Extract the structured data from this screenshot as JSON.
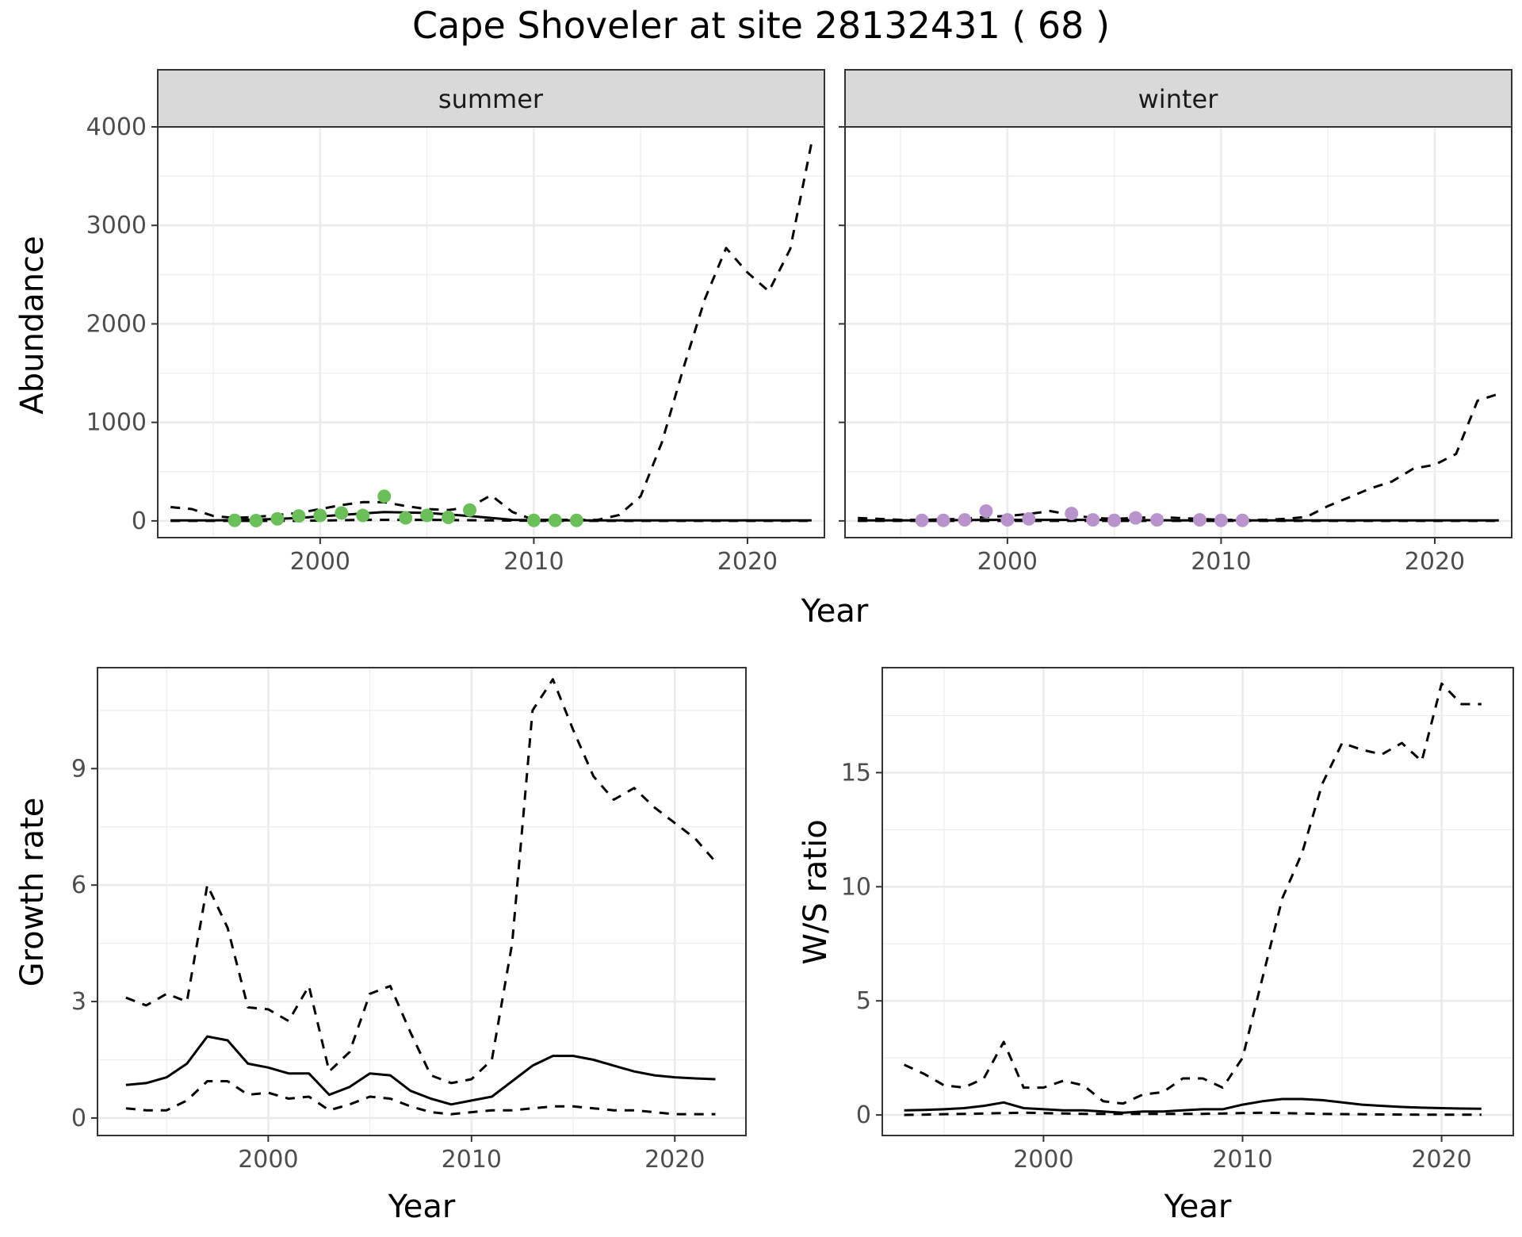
{
  "figure": {
    "title": "Cape Shoveler at site 28132431 ( 68 )",
    "abundance_xlabel": "Year"
  },
  "colors": {
    "summer_points": "#6abf59",
    "winter_points": "#b893cc",
    "strip_fill": "#d9d9d9",
    "strip_border": "#333333",
    "panel_border": "#333333",
    "grid_major": "#ebebeb",
    "line": "#000000"
  },
  "chart_data": [
    {
      "type": "line",
      "facet": "summer",
      "ylabel": "Abundance",
      "xlim": [
        1992.4,
        2023.6
      ],
      "ylim": [
        -170,
        4000
      ],
      "xticks": [
        2000,
        2010,
        2020
      ],
      "yticks": [
        0,
        1000,
        2000,
        3000,
        4000
      ],
      "series": [
        {
          "style": "solid",
          "x": [
            1993,
            1995,
            1997,
            1999,
            2001,
            2003,
            2005,
            2007,
            2009,
            2011,
            2013,
            2015,
            2017,
            2019,
            2021,
            2023
          ],
          "y": [
            5,
            5,
            12,
            30,
            60,
            90,
            80,
            50,
            10,
            5,
            5,
            5,
            5,
            5,
            5,
            5
          ]
        },
        {
          "style": "dashed",
          "x": [
            1993,
            1994,
            1995,
            1996,
            1997,
            1998,
            1999,
            2000,
            2001,
            2002,
            2003,
            2004,
            2005,
            2006,
            2007,
            2008,
            2009,
            2010,
            2011,
            2012,
            2013,
            2014,
            2015,
            2016,
            2017,
            2018,
            2019,
            2020,
            2021,
            2022,
            2023
          ],
          "y": [
            140,
            120,
            50,
            30,
            40,
            60,
            80,
            120,
            160,
            190,
            190,
            150,
            120,
            110,
            140,
            260,
            90,
            10,
            10,
            10,
            10,
            60,
            250,
            800,
            1550,
            2250,
            2770,
            2520,
            2330,
            2760,
            3840
          ]
        },
        {
          "style": "dashed",
          "x": [
            1993,
            1996,
            1999,
            2002,
            2005,
            2008,
            2011,
            2014,
            2017,
            2020,
            2023
          ],
          "y": [
            0,
            0,
            0,
            10,
            10,
            5,
            0,
            0,
            0,
            0,
            0
          ]
        }
      ],
      "points": {
        "x": [
          1996,
          1997,
          1998,
          1999,
          2000,
          2001,
          2002,
          2003,
          2004,
          2005,
          2006,
          2007,
          2010,
          2011,
          2012
        ],
        "y": [
          5,
          3,
          20,
          50,
          55,
          80,
          55,
          250,
          30,
          55,
          35,
          110,
          5,
          5,
          5
        ]
      }
    },
    {
      "type": "line",
      "facet": "winter",
      "ylabel": "",
      "xlim": [
        1992.4,
        2023.6
      ],
      "ylim": [
        -170,
        4000
      ],
      "xticks": [
        2000,
        2010,
        2020
      ],
      "yticks": [
        0,
        1000,
        2000,
        3000,
        4000
      ],
      "series": [
        {
          "style": "solid",
          "x": [
            1993,
            1996,
            1999,
            2002,
            2005,
            2008,
            2011,
            2014,
            2017,
            2020,
            2023
          ],
          "y": [
            5,
            5,
            10,
            10,
            10,
            5,
            5,
            5,
            5,
            5,
            5
          ]
        },
        {
          "style": "dashed",
          "x": [
            1993,
            1994,
            1995,
            1996,
            1997,
            1998,
            1999,
            2000,
            2001,
            2002,
            2003,
            2004,
            2005,
            2006,
            2007,
            2008,
            2009,
            2010,
            2011,
            2012,
            2013,
            2014,
            2015,
            2016,
            2017,
            2018,
            2019,
            2020,
            2021,
            2022,
            2023
          ],
          "y": [
            30,
            20,
            10,
            10,
            15,
            20,
            40,
            50,
            70,
            100,
            60,
            30,
            20,
            30,
            40,
            30,
            20,
            10,
            10,
            10,
            20,
            40,
            150,
            240,
            330,
            400,
            530,
            570,
            680,
            1220,
            1290
          ]
        },
        {
          "style": "dashed",
          "x": [
            1993,
            1998,
            2003,
            2008,
            2013,
            2018,
            2023
          ],
          "y": [
            0,
            0,
            0,
            0,
            0,
            0,
            0
          ]
        }
      ],
      "points": {
        "x": [
          1996,
          1997,
          1998,
          1999,
          2000,
          2001,
          2003,
          2004,
          2005,
          2006,
          2007,
          2009,
          2010,
          2011
        ],
        "y": [
          5,
          5,
          10,
          100,
          10,
          20,
          75,
          10,
          5,
          30,
          10,
          10,
          5,
          5
        ]
      }
    },
    {
      "type": "line",
      "ylabel": "Growth rate",
      "xlabel": "Year",
      "xlim": [
        1991.6,
        2023.5
      ],
      "ylim": [
        -0.45,
        11.6
      ],
      "xticks": [
        2000,
        2010,
        2020
      ],
      "yticks": [
        0,
        3,
        6,
        9
      ],
      "series": [
        {
          "style": "solid",
          "x": [
            1993,
            1994,
            1995,
            1996,
            1997,
            1998,
            1999,
            2000,
            2001,
            2002,
            2003,
            2004,
            2005,
            2006,
            2007,
            2008,
            2009,
            2010,
            2011,
            2012,
            2013,
            2014,
            2015,
            2016,
            2017,
            2018,
            2019,
            2020,
            2021,
            2022
          ],
          "y": [
            0.85,
            0.9,
            1.05,
            1.4,
            2.1,
            2.0,
            1.4,
            1.3,
            1.15,
            1.15,
            0.6,
            0.8,
            1.15,
            1.1,
            0.7,
            0.5,
            0.35,
            0.45,
            0.55,
            0.95,
            1.35,
            1.6,
            1.6,
            1.5,
            1.35,
            1.2,
            1.1,
            1.05,
            1.02,
            1.0
          ]
        },
        {
          "style": "dashed",
          "x": [
            1993,
            1994,
            1995,
            1996,
            1997,
            1998,
            1999,
            2000,
            2001,
            2002,
            2003,
            2004,
            2005,
            2006,
            2007,
            2008,
            2009,
            2010,
            2011,
            2012,
            2013,
            2014,
            2015,
            2016,
            2017,
            2018,
            2019,
            2020,
            2021,
            2022
          ],
          "y": [
            3.1,
            2.9,
            3.2,
            3.0,
            6.0,
            4.9,
            2.85,
            2.8,
            2.5,
            3.4,
            1.2,
            1.7,
            3.2,
            3.4,
            2.2,
            1.1,
            0.9,
            1.0,
            1.5,
            4.5,
            10.5,
            11.3,
            10.0,
            8.8,
            8.2,
            8.5,
            8.0,
            7.6,
            7.2,
            6.6
          ]
        },
        {
          "style": "dashed",
          "x": [
            1993,
            1994,
            1995,
            1996,
            1997,
            1998,
            1999,
            2000,
            2001,
            2002,
            2003,
            2004,
            2005,
            2006,
            2007,
            2008,
            2009,
            2010,
            2011,
            2012,
            2013,
            2014,
            2015,
            2016,
            2017,
            2018,
            2019,
            2020,
            2021,
            2022
          ],
          "y": [
            0.25,
            0.2,
            0.2,
            0.45,
            0.95,
            0.95,
            0.6,
            0.65,
            0.5,
            0.55,
            0.2,
            0.35,
            0.55,
            0.5,
            0.3,
            0.15,
            0.1,
            0.15,
            0.2,
            0.2,
            0.25,
            0.3,
            0.3,
            0.25,
            0.2,
            0.2,
            0.15,
            0.1,
            0.1,
            0.1
          ]
        }
      ]
    },
    {
      "type": "line",
      "ylabel": "W/S ratio",
      "xlabel": "Year",
      "xlim": [
        1991.9,
        2023.6
      ],
      "ylim": [
        -0.9,
        19.6
      ],
      "xticks": [
        2000,
        2010,
        2020
      ],
      "yticks": [
        0,
        5,
        10,
        15
      ],
      "series": [
        {
          "style": "solid",
          "x": [
            1993,
            1994,
            1995,
            1996,
            1997,
            1998,
            1999,
            2000,
            2001,
            2002,
            2003,
            2004,
            2005,
            2006,
            2007,
            2008,
            2009,
            2010,
            2011,
            2012,
            2013,
            2014,
            2015,
            2016,
            2017,
            2018,
            2019,
            2020,
            2021,
            2022
          ],
          "y": [
            0.2,
            0.22,
            0.25,
            0.3,
            0.4,
            0.55,
            0.3,
            0.25,
            0.2,
            0.2,
            0.15,
            0.1,
            0.15,
            0.15,
            0.2,
            0.25,
            0.25,
            0.45,
            0.6,
            0.7,
            0.7,
            0.65,
            0.55,
            0.45,
            0.4,
            0.35,
            0.32,
            0.3,
            0.28,
            0.27
          ]
        },
        {
          "style": "dashed",
          "x": [
            1993,
            1994,
            1995,
            1996,
            1997,
            1998,
            1999,
            2000,
            2001,
            2002,
            2003,
            2004,
            2005,
            2006,
            2007,
            2008,
            2009,
            2010,
            2011,
            2012,
            2013,
            2014,
            2015,
            2016,
            2017,
            2018,
            2019,
            2020,
            2021,
            2022
          ],
          "y": [
            2.2,
            1.8,
            1.3,
            1.2,
            1.6,
            3.2,
            1.2,
            1.2,
            1.5,
            1.3,
            0.6,
            0.5,
            0.9,
            1.0,
            1.6,
            1.6,
            1.2,
            2.5,
            6.0,
            9.5,
            11.5,
            14.5,
            16.3,
            16.0,
            15.8,
            16.3,
            15.5,
            18.9,
            18.0,
            18.0
          ]
        },
        {
          "style": "dashed",
          "x": [
            1993,
            1996,
            1999,
            2002,
            2005,
            2008,
            2011,
            2014,
            2017,
            2020,
            2022
          ],
          "y": [
            0.0,
            0.05,
            0.1,
            0.05,
            0.05,
            0.05,
            0.1,
            0.05,
            0.02,
            0.01,
            0.01
          ]
        }
      ]
    }
  ]
}
